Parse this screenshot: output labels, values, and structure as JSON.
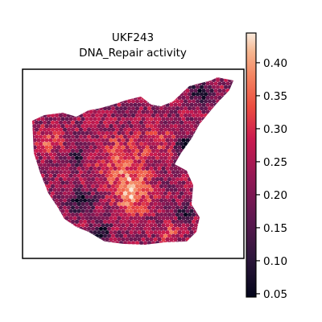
{
  "chart_data": {
    "type": "heatmap",
    "title_lines": [
      "UKF243",
      "DNA_Repair activity"
    ],
    "xlabel": "",
    "ylabel": "",
    "grid": false,
    "colormap": "rocket",
    "colorbar": {
      "range": [
        0.045,
        0.445
      ],
      "ticks": [
        0.05,
        0.1,
        0.15,
        0.2,
        0.25,
        0.3,
        0.35,
        0.4
      ],
      "tick_labels": [
        "0.05",
        "0.10",
        "0.15",
        "0.20",
        "0.25",
        "0.30",
        "0.35",
        "0.40"
      ]
    }
  }
}
